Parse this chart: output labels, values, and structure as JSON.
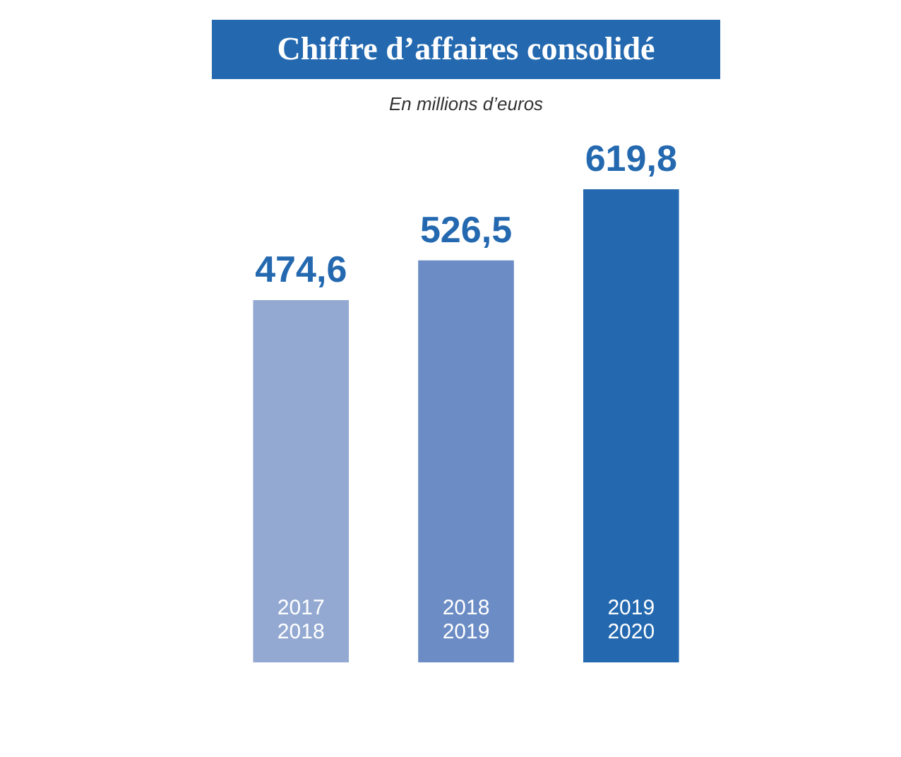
{
  "chart_data": {
    "type": "bar",
    "title": "Chiffre d’affaires consolidé",
    "subtitle": "En millions d’euros",
    "categories": [
      "2017\n2018",
      "2018\n2019",
      "2019\n2020"
    ],
    "values": [
      474.6,
      526.5,
      619.8
    ],
    "colors": [
      "#93a9d2",
      "#6b8cc4",
      "#2469b0"
    ],
    "value_labels": [
      "474,6",
      "526,5",
      "619,8"
    ]
  }
}
